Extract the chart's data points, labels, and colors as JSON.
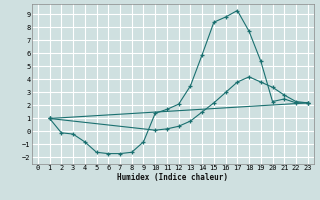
{
  "xlabel": "Humidex (Indice chaleur)",
  "xlim": [
    -0.5,
    23.5
  ],
  "ylim": [
    -2.5,
    9.8
  ],
  "xticks": [
    0,
    1,
    2,
    3,
    4,
    5,
    6,
    7,
    8,
    9,
    10,
    11,
    12,
    13,
    14,
    15,
    16,
    17,
    18,
    19,
    20,
    21,
    22,
    23
  ],
  "yticks": [
    -2,
    -1,
    0,
    1,
    2,
    3,
    4,
    5,
    6,
    7,
    8,
    9
  ],
  "bg_color": "#cfe0e0",
  "line_color": "#1a7070",
  "grid_color": "#ffffff",
  "series": [
    {
      "x": [
        1,
        2,
        3,
        4,
        5,
        6,
        7,
        8,
        9,
        10,
        11,
        12,
        13,
        14,
        15,
        16,
        17,
        18,
        19,
        20,
        21,
        22,
        23
      ],
      "y": [
        1.0,
        -0.1,
        -0.2,
        -0.8,
        -1.6,
        -1.7,
        -1.7,
        -1.6,
        -0.8,
        1.4,
        1.7,
        2.1,
        3.5,
        5.9,
        8.4,
        8.8,
        9.3,
        7.7,
        5.4,
        2.3,
        2.5,
        2.2,
        2.2
      ]
    },
    {
      "x": [
        1,
        10,
        11,
        12,
        13,
        14,
        15,
        16,
        17,
        18,
        19,
        20,
        21,
        22,
        23
      ],
      "y": [
        1.0,
        0.1,
        0.2,
        0.4,
        0.8,
        1.5,
        2.2,
        3.0,
        3.8,
        4.2,
        3.8,
        3.4,
        2.8,
        2.3,
        2.2
      ]
    },
    {
      "x": [
        1,
        23
      ],
      "y": [
        1.0,
        2.2
      ]
    }
  ]
}
